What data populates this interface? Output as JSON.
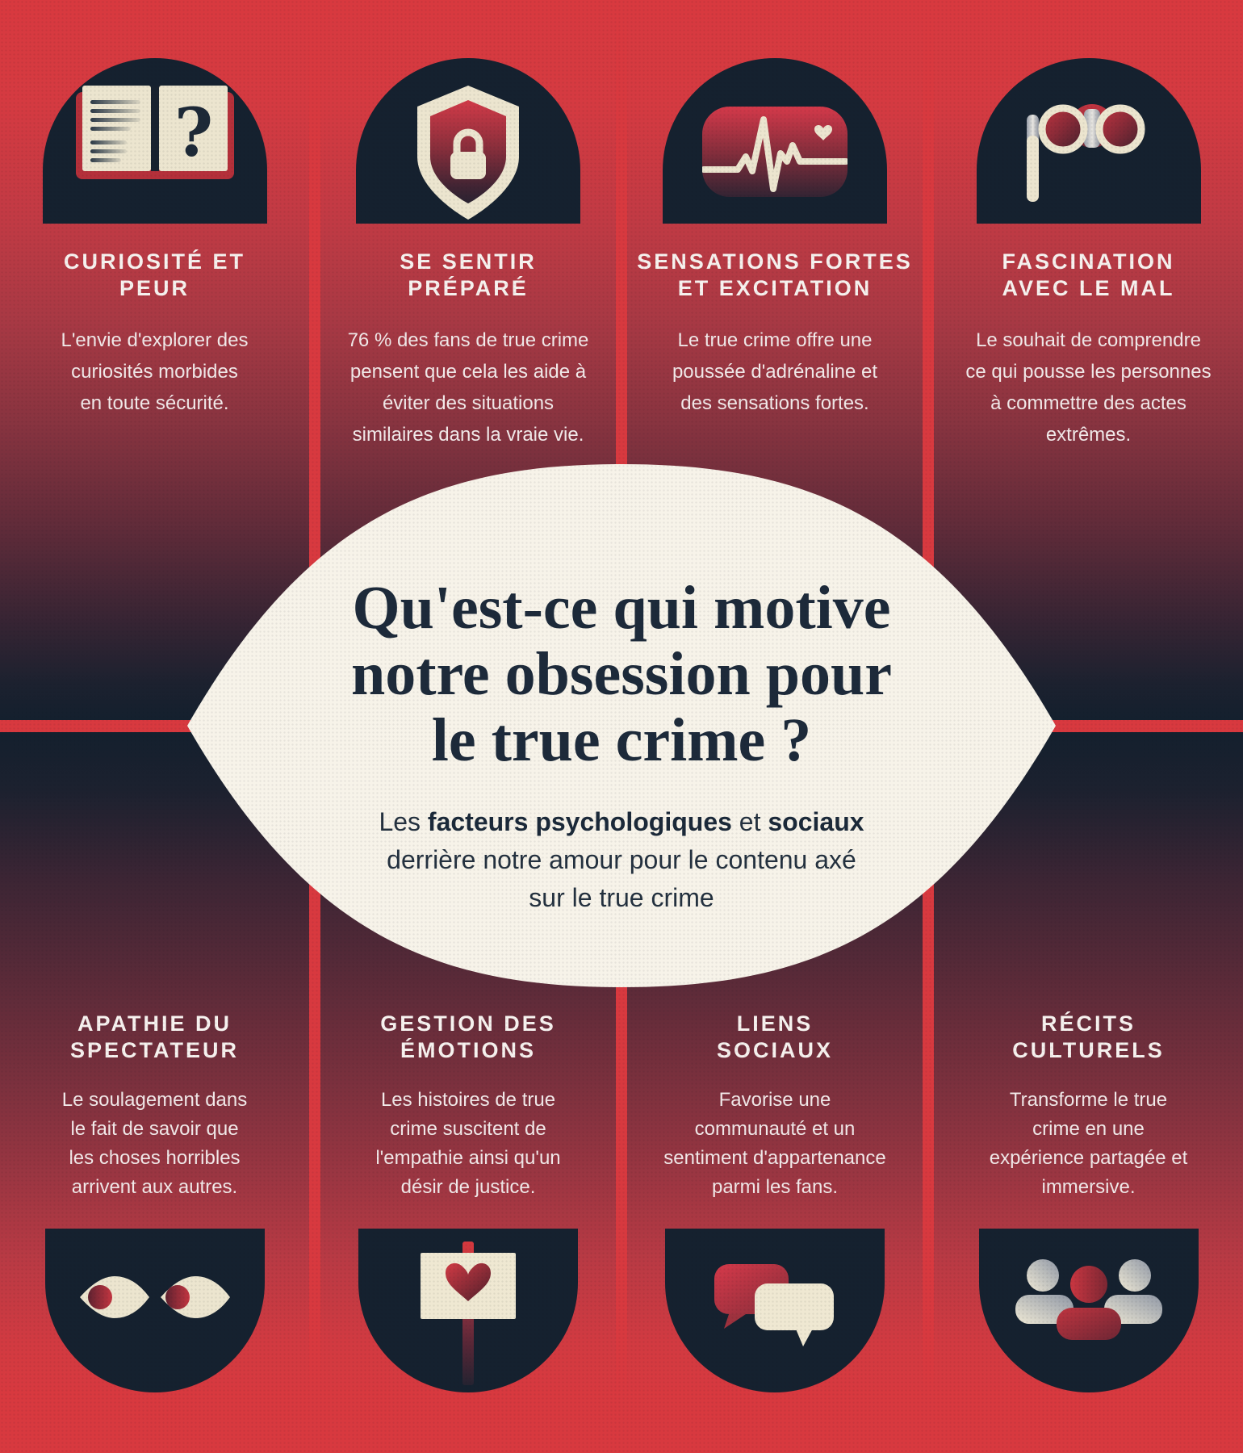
{
  "center": {
    "title": "Qu'est-ce qui motive\nnotre obsession pour\nle true crime ?",
    "subtitle_segments": [
      {
        "text": "Les ",
        "bold": false
      },
      {
        "text": "facteurs psychologiques",
        "bold": true
      },
      {
        "text": " et ",
        "bold": false
      },
      {
        "text": "sociaux",
        "bold": true
      },
      {
        "text": "\nderrière notre amour pour le contenu axé\nsur le true crime",
        "bold": false
      }
    ]
  },
  "columns": {
    "top": [
      {
        "icon": "open-book-question-icon",
        "title": "CURIOSITÉ ET\nPEUR",
        "body": "L'envie d'explorer des\ncuriosités morbides\nen toute sécurité."
      },
      {
        "icon": "shield-lock-icon",
        "title": "SE SENTIR\nPRÉPARÉ",
        "body": "76 % des fans de true crime\npensent que cela les aide à\néviter des situations\nsimilaires dans la vraie vie."
      },
      {
        "icon": "heartbeat-monitor-icon",
        "title": "SENSATIONS FORTES\nET EXCITATION",
        "body": "Le true crime offre une\npoussée d'adrénaline et\ndes sensations fortes."
      },
      {
        "icon": "opera-glasses-icon",
        "title": "FASCINATION\nAVEC LE MAL",
        "body": "Le souhait de comprendre\nce qui pousse les personnes\nà commettre des actes\nextrêmes."
      }
    ],
    "bottom": [
      {
        "icon": "watching-eyes-icon",
        "title": "APATHIE DU\nSPECTATEUR",
        "body": "Le soulagement dans\nle fait de savoir que\nles choses horribles\narrivent aux autres."
      },
      {
        "icon": "protest-sign-heart-icon",
        "title": "GESTION DES\nÉMOTIONS",
        "body": "Les histoires de true\ncrime suscitent de\nl'empathie ainsi qu'un\ndésir de justice."
      },
      {
        "icon": "chat-bubbles-icon",
        "title": "LIENS\nSOCIAUX",
        "body": "Favorise une\ncommunauté et un\nsentiment d'appartenance\nparmi les fans."
      },
      {
        "icon": "people-group-icon",
        "title": "RÉCITS\nCULTURELS",
        "body": "Transforme le true\ncrime en une\nexpérience partagée et\nimmersive."
      }
    ]
  },
  "colors": {
    "background_red": "#d8393f",
    "panel_navy": "#14202e",
    "icon_cream": "#ece5cf",
    "eye_offwhite": "#f7f3e9",
    "title_navy": "#1d2a3a",
    "text_light": "#f2e9e9"
  }
}
